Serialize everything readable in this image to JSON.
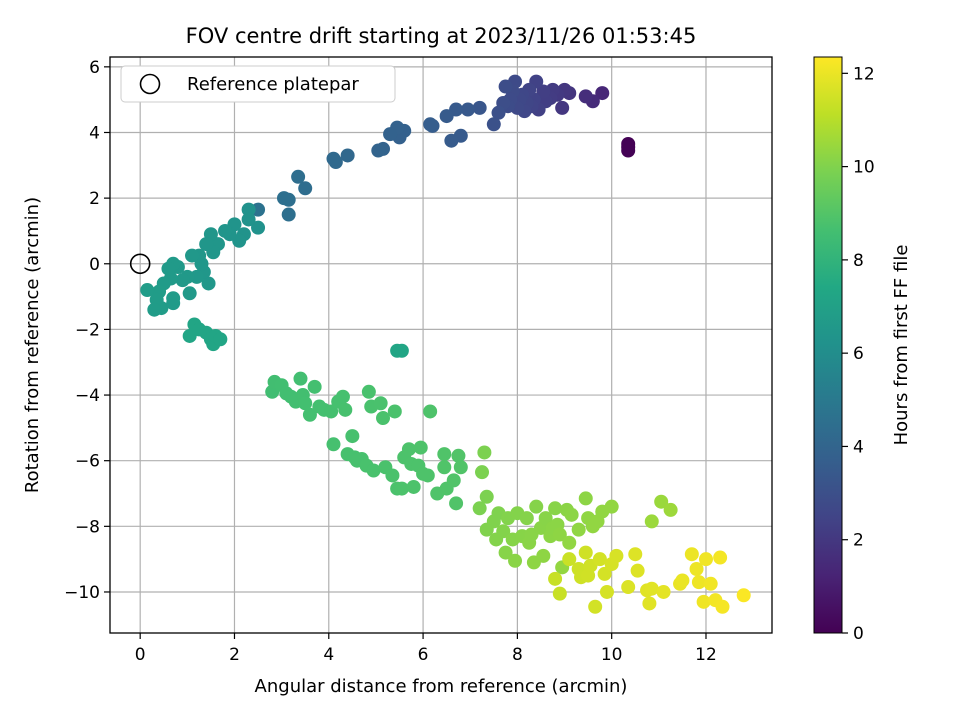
{
  "chart_data": {
    "type": "scatter",
    "title": "FOV centre drift starting at 2023/11/26 01:53:45",
    "xlabel": "Angular distance from reference (arcmin)",
    "ylabel": "Rotation from reference (arcmin)",
    "xlim": [
      -0.64,
      13.4
    ],
    "ylim": [
      -11.25,
      6.3
    ],
    "x_ticks": [
      0,
      2,
      4,
      6,
      8,
      10,
      12
    ],
    "y_ticks": [
      -10,
      -8,
      -6,
      -4,
      -2,
      0,
      2,
      4,
      6
    ],
    "grid": true,
    "legend": {
      "placement": "top-left",
      "entries": [
        "Reference platepar"
      ]
    },
    "reference_point": {
      "x": 0,
      "y": 0
    },
    "colorbar": {
      "label": "Hours from first FF file",
      "colormap": "viridis",
      "range": [
        0,
        12.35
      ],
      "ticks": [
        0,
        2,
        4,
        6,
        8,
        10,
        12
      ]
    },
    "series": [
      {
        "values": [
          [
            10.35,
            3.65
          ],
          [
            10.35,
            3.55
          ],
          [
            10.35,
            3.45
          ],
          [
            9.8,
            5.2
          ],
          [
            9.6,
            4.95
          ],
          [
            9.45,
            5.1
          ],
          [
            9.1,
            5.2
          ],
          [
            9.0,
            5.3
          ],
          [
            8.95,
            4.75
          ],
          [
            8.85,
            5.15
          ],
          [
            8.75,
            5.3
          ],
          [
            8.7,
            5.05
          ],
          [
            8.6,
            4.95
          ],
          [
            8.55,
            5.25
          ],
          [
            8.45,
            4.7
          ],
          [
            8.4,
            5.55
          ],
          [
            8.35,
            5.0
          ],
          [
            8.3,
            4.8
          ],
          [
            8.25,
            5.3
          ],
          [
            8.2,
            4.9
          ],
          [
            8.15,
            4.65
          ],
          [
            8.1,
            5.15
          ],
          [
            8.05,
            5.0
          ],
          [
            8.0,
            4.75
          ],
          [
            7.95,
            5.55
          ],
          [
            7.9,
            5.25
          ],
          [
            7.85,
            5.0
          ],
          [
            7.8,
            4.8
          ],
          [
            7.75,
            5.4
          ],
          [
            7.7,
            4.9
          ],
          [
            7.6,
            4.6
          ],
          [
            7.5,
            4.25
          ],
          [
            7.2,
            4.75
          ],
          [
            6.95,
            4.7
          ],
          [
            6.8,
            3.9
          ],
          [
            6.7,
            4.7
          ],
          [
            6.6,
            3.75
          ],
          [
            6.5,
            4.5
          ],
          [
            6.2,
            4.2
          ],
          [
            6.15,
            4.25
          ],
          [
            5.6,
            4.05
          ],
          [
            5.5,
            3.85
          ],
          [
            5.45,
            4.15
          ],
          [
            5.3,
            3.95
          ],
          [
            5.15,
            3.5
          ],
          [
            5.05,
            3.45
          ],
          [
            4.4,
            3.3
          ],
          [
            4.15,
            3.1
          ],
          [
            4.1,
            3.2
          ],
          [
            3.5,
            2.3
          ],
          [
            3.35,
            2.65
          ],
          [
            3.15,
            1.95
          ],
          [
            3.15,
            1.5
          ],
          [
            3.05,
            2.0
          ],
          [
            2.5,
            1.65
          ],
          [
            2.5,
            1.1
          ],
          [
            2.3,
            1.65
          ],
          [
            2.3,
            1.35
          ],
          [
            2.2,
            0.9
          ],
          [
            2.1,
            0.7
          ],
          [
            2.0,
            1.2
          ],
          [
            1.9,
            0.9
          ],
          [
            1.8,
            1.0
          ],
          [
            1.65,
            0.6
          ],
          [
            1.55,
            0.35
          ],
          [
            1.5,
            0.9
          ],
          [
            1.45,
            -0.6
          ],
          [
            1.4,
            0.6
          ],
          [
            1.35,
            -0.25
          ],
          [
            1.3,
            0.0
          ],
          [
            1.25,
            0.25
          ],
          [
            1.2,
            -0.4
          ],
          [
            1.1,
            0.25
          ],
          [
            1.05,
            -0.9
          ],
          [
            1.0,
            -0.4
          ],
          [
            0.9,
            -0.5
          ],
          [
            0.8,
            -0.1
          ],
          [
            0.7,
            0.0
          ],
          [
            0.65,
            -0.45
          ],
          [
            0.6,
            -0.15
          ],
          [
            0.5,
            -0.6
          ],
          [
            0.45,
            -1.35
          ],
          [
            0.4,
            -0.85
          ],
          [
            0.35,
            -1.1
          ],
          [
            0.3,
            -1.4
          ],
          [
            0.15,
            -0.8
          ],
          [
            0.7,
            -1.2
          ],
          [
            0.7,
            -1.05
          ],
          [
            1.05,
            -2.2
          ],
          [
            1.15,
            -1.85
          ],
          [
            1.25,
            -2.0
          ],
          [
            1.4,
            -2.1
          ],
          [
            1.5,
            -2.3
          ],
          [
            1.55,
            -2.45
          ],
          [
            1.6,
            -2.2
          ],
          [
            1.7,
            -2.3
          ],
          [
            5.45,
            -2.65
          ],
          [
            5.55,
            -2.65
          ],
          [
            2.8,
            -3.9
          ],
          [
            2.85,
            -3.6
          ],
          [
            3.0,
            -3.7
          ],
          [
            3.1,
            -3.95
          ],
          [
            3.2,
            -4.05
          ],
          [
            3.3,
            -4.2
          ],
          [
            3.4,
            -3.5
          ],
          [
            3.45,
            -4.0
          ],
          [
            3.5,
            -4.25
          ],
          [
            3.6,
            -4.6
          ],
          [
            3.7,
            -3.75
          ],
          [
            3.8,
            -4.35
          ],
          [
            3.9,
            -4.45
          ],
          [
            4.05,
            -4.5
          ],
          [
            4.1,
            -5.5
          ],
          [
            4.2,
            -4.2
          ],
          [
            4.3,
            -4.05
          ],
          [
            4.35,
            -4.45
          ],
          [
            4.4,
            -5.8
          ],
          [
            4.5,
            -5.25
          ],
          [
            4.55,
            -5.9
          ],
          [
            4.6,
            -6.0
          ],
          [
            4.7,
            -5.95
          ],
          [
            4.8,
            -6.15
          ],
          [
            4.85,
            -3.9
          ],
          [
            4.9,
            -4.35
          ],
          [
            4.95,
            -6.3
          ],
          [
            5.1,
            -4.25
          ],
          [
            5.15,
            -4.7
          ],
          [
            5.2,
            -6.2
          ],
          [
            5.35,
            -6.45
          ],
          [
            5.4,
            -4.5
          ],
          [
            5.45,
            -6.85
          ],
          [
            5.55,
            -6.85
          ],
          [
            5.6,
            -5.9
          ],
          [
            5.7,
            -5.65
          ],
          [
            5.75,
            -6.1
          ],
          [
            5.8,
            -6.8
          ],
          [
            5.9,
            -6.15
          ],
          [
            5.95,
            -5.6
          ],
          [
            6.0,
            -6.4
          ],
          [
            6.1,
            -6.45
          ],
          [
            6.15,
            -4.5
          ],
          [
            6.3,
            -7.0
          ],
          [
            6.45,
            -6.2
          ],
          [
            6.45,
            -5.8
          ],
          [
            6.5,
            -6.85
          ],
          [
            6.65,
            -6.6
          ],
          [
            6.7,
            -7.3
          ],
          [
            6.75,
            -5.85
          ],
          [
            6.8,
            -6.2
          ],
          [
            7.2,
            -7.45
          ],
          [
            7.25,
            -6.35
          ],
          [
            7.3,
            -5.75
          ],
          [
            7.35,
            -7.1
          ],
          [
            7.35,
            -8.1
          ],
          [
            7.5,
            -7.85
          ],
          [
            7.55,
            -8.4
          ],
          [
            7.6,
            -7.6
          ],
          [
            7.7,
            -8.15
          ],
          [
            7.75,
            -8.8
          ],
          [
            7.8,
            -7.75
          ],
          [
            7.9,
            -8.4
          ],
          [
            7.95,
            -9.05
          ],
          [
            8.0,
            -7.6
          ],
          [
            8.1,
            -8.3
          ],
          [
            8.2,
            -7.75
          ],
          [
            8.25,
            -8.5
          ],
          [
            8.3,
            -8.25
          ],
          [
            8.35,
            -9.1
          ],
          [
            8.4,
            -7.4
          ],
          [
            8.5,
            -8.05
          ],
          [
            8.55,
            -8.9
          ],
          [
            8.6,
            -7.75
          ],
          [
            8.7,
            -8.3
          ],
          [
            8.75,
            -8.05
          ],
          [
            8.8,
            -7.45
          ],
          [
            8.85,
            -7.95
          ],
          [
            8.9,
            -8.25
          ],
          [
            8.95,
            -9.25
          ],
          [
            9.05,
            -7.5
          ],
          [
            9.1,
            -8.5
          ],
          [
            9.15,
            -7.65
          ],
          [
            9.3,
            -8.1
          ],
          [
            9.45,
            -7.15
          ],
          [
            9.5,
            -7.75
          ],
          [
            9.6,
            -8.0
          ],
          [
            9.7,
            -7.85
          ],
          [
            9.8,
            -7.55
          ],
          [
            10.0,
            -7.4
          ],
          [
            10.85,
            -7.85
          ],
          [
            11.05,
            -7.25
          ],
          [
            11.25,
            -7.5
          ]
        ]
      },
      {
        "values": [
          [
            8.8,
            -9.6
          ],
          [
            8.9,
            -10.05
          ],
          [
            9.1,
            -9.0
          ],
          [
            9.3,
            -9.3
          ],
          [
            9.35,
            -9.55
          ],
          [
            9.45,
            -8.8
          ],
          [
            9.5,
            -9.5
          ],
          [
            9.55,
            -9.2
          ],
          [
            9.65,
            -10.45
          ],
          [
            9.75,
            -9.0
          ],
          [
            9.85,
            -9.45
          ],
          [
            9.9,
            -10.0
          ],
          [
            10.0,
            -9.15
          ],
          [
            10.1,
            -8.9
          ],
          [
            10.35,
            -9.85
          ],
          [
            10.5,
            -8.85
          ],
          [
            10.55,
            -9.35
          ],
          [
            10.75,
            -9.95
          ],
          [
            10.8,
            -10.35
          ],
          [
            10.85,
            -9.9
          ],
          [
            11.1,
            -10.0
          ],
          [
            11.45,
            -9.75
          ],
          [
            11.5,
            -9.65
          ],
          [
            11.7,
            -8.85
          ],
          [
            11.8,
            -9.3
          ],
          [
            11.85,
            -9.7
          ],
          [
            11.95,
            -10.3
          ],
          [
            12.0,
            -9.0
          ],
          [
            12.1,
            -9.75
          ],
          [
            12.2,
            -10.25
          ],
          [
            12.3,
            -8.95
          ],
          [
            12.35,
            -10.45
          ],
          [
            12.8,
            -10.1
          ]
        ]
      }
    ]
  }
}
